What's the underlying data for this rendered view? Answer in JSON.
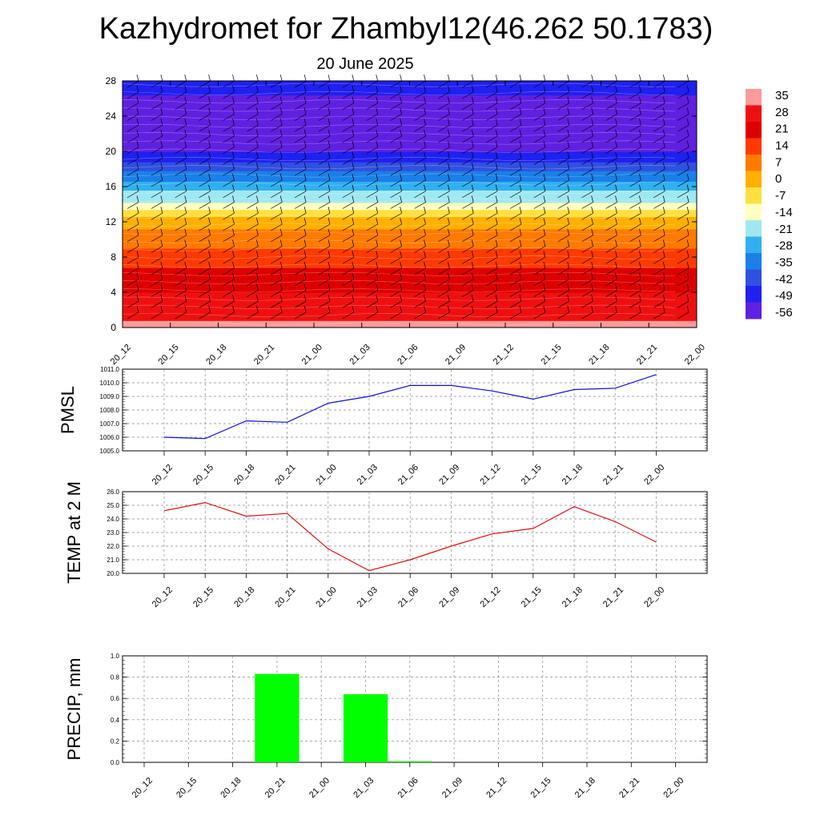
{
  "page": {
    "title": "Kazhydromet for Zhambyl12(46.262 50.1783)",
    "subtitle": "20 June 2025"
  },
  "colors": {
    "pmsl_line": "#1010dd",
    "temp_line": "#dd1010",
    "precip_bar": "#00ff00",
    "grid": "#888888"
  },
  "chart_data": [
    {
      "type": "heatmap",
      "name": "upper-air-temperature",
      "x": [
        "20_12",
        "20_15",
        "20_18",
        "20_21",
        "21_00",
        "21_03",
        "21_06",
        "21_09",
        "21_12",
        "21_15",
        "21_18",
        "21_21",
        "22_00"
      ],
      "ylim": [
        0,
        28
      ],
      "yticks": [
        0,
        4,
        8,
        12,
        16,
        20,
        24,
        28
      ],
      "colorbar": {
        "labels": [
          "35",
          "28",
          "21",
          "14",
          "7",
          "0",
          "-7",
          "-14",
          "-21",
          "-28",
          "-35",
          "-42",
          "-49",
          "-56"
        ],
        "range": [
          -56,
          35
        ],
        "colors": [
          "#ff9a9a",
          "#ee1010",
          "#dd0000",
          "#ff3a00",
          "#ff7a00",
          "#ffb000",
          "#ffe040",
          "#ffffc0",
          "#a0e8f0",
          "#30b0f0",
          "#1a80e8",
          "#3050e0",
          "#2020f0",
          "#6020e0"
        ]
      },
      "temperature_profile": {
        "heights": [
          0,
          2,
          4,
          6,
          8,
          10,
          12,
          13,
          14,
          16,
          18,
          20,
          22,
          24,
          26,
          28
        ],
        "values": [
          30,
          26,
          22,
          18,
          12,
          6,
          0,
          -8,
          -16,
          -26,
          -38,
          -50,
          -56,
          -54,
          -50,
          -48
        ]
      },
      "wind_barbs": "on",
      "grid": "off"
    },
    {
      "type": "line",
      "ylabel": "PMSL",
      "categories": [
        "20_12",
        "20_15",
        "20_18",
        "20_21",
        "21_00",
        "21_03",
        "21_06",
        "21_09",
        "21_12",
        "21_15",
        "21_18",
        "21_21",
        "22_00"
      ],
      "values": [
        1006.0,
        1005.9,
        1007.2,
        1007.1,
        1008.5,
        1009.0,
        1009.8,
        1009.8,
        1009.4,
        1008.8,
        1009.5,
        1009.6,
        1010.6
      ],
      "ylim": [
        1005.0,
        1011.0
      ],
      "yticks": [
        "1005.0",
        "1006.0",
        "1007.0",
        "1008.0",
        "1009.0",
        "1010.0",
        "1011.0"
      ],
      "grid": "on"
    },
    {
      "type": "line",
      "ylabel": "TEMP at 2 M",
      "categories": [
        "20_12",
        "20_15",
        "20_18",
        "20_21",
        "21_00",
        "21_03",
        "21_06",
        "21_09",
        "21_12",
        "21_15",
        "21_18",
        "21_21",
        "22_00"
      ],
      "values": [
        24.6,
        25.2,
        24.2,
        24.4,
        21.8,
        20.2,
        21.0,
        22.0,
        22.9,
        23.3,
        24.9,
        23.8,
        22.3
      ],
      "ylim": [
        20.0,
        26.0
      ],
      "yticks": [
        "20.0",
        "21.0",
        "22.0",
        "23.0",
        "24.0",
        "25.0",
        "26.0"
      ],
      "grid": "on"
    },
    {
      "type": "bar",
      "ylabel": "PRECIP, mm",
      "categories": [
        "20_12",
        "20_15",
        "20_18",
        "20_21",
        "21_00",
        "21_03",
        "21_06",
        "21_09",
        "21_12",
        "21_15",
        "21_18",
        "21_21",
        "22_00"
      ],
      "values": [
        0,
        0,
        0,
        0.83,
        0,
        0.64,
        0.01,
        0,
        0,
        0,
        0,
        0,
        0
      ],
      "ylim": [
        0.0,
        1.0
      ],
      "yticks": [
        "0.0",
        "0.2",
        "0.4",
        "0.6",
        "0.8",
        "1.0"
      ],
      "grid": "on"
    }
  ]
}
